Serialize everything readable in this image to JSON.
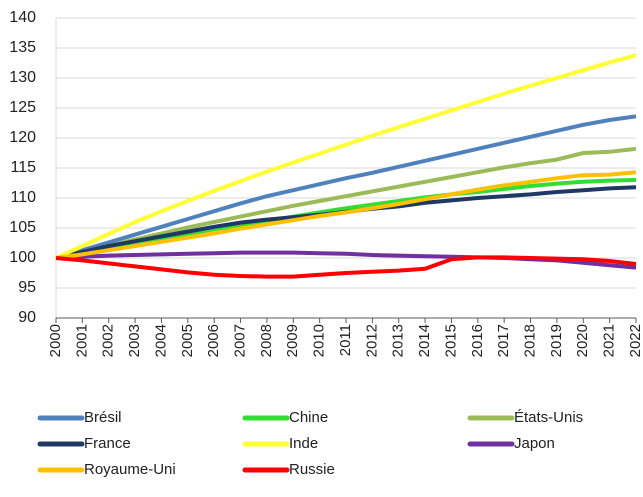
{
  "chart_data": {
    "type": "line",
    "categories": [
      "2000",
      "2001",
      "2002",
      "2003",
      "2004",
      "2005",
      "2006",
      "2007",
      "2008",
      "2009",
      "2010",
      "2011",
      "2012",
      "2013",
      "2014",
      "2015",
      "2016",
      "2017",
      "2018",
      "2019",
      "2020",
      "2021",
      "2022"
    ],
    "ylim": [
      90,
      140
    ],
    "yticks": [
      90,
      95,
      100,
      105,
      110,
      115,
      120,
      125,
      130,
      135,
      140
    ],
    "grid": true,
    "legend": "bottom",
    "series": [
      {
        "name": "Brésil",
        "color": "#4f81bd",
        "values": [
          100,
          101.3,
          102.6,
          103.9,
          105.2,
          106.5,
          107.8,
          109.1,
          110.3,
          111.3,
          112.3,
          113.3,
          114.2,
          115.2,
          116.2,
          117.2,
          118.2,
          119.2,
          120.2,
          121.2,
          122.2,
          123.0,
          123.6
        ]
      },
      {
        "name": "Chine",
        "color": "#33dd33",
        "values": [
          100,
          100.8,
          101.6,
          102.4,
          103.2,
          104,
          104.8,
          105.5,
          106.2,
          106.9,
          107.6,
          108.3,
          108.9,
          109.5,
          110.1,
          110.6,
          111.0,
          111.5,
          112.0,
          112.4,
          112.7,
          112.9,
          113.0
        ]
      },
      {
        "name": "États-Unis",
        "color": "#9bbb59",
        "values": [
          100,
          101,
          102,
          103.1,
          104.1,
          105.1,
          106,
          106.9,
          107.8,
          108.7,
          109.5,
          110.3,
          111.1,
          111.9,
          112.7,
          113.5,
          114.3,
          115.1,
          115.8,
          116.4,
          117.5,
          117.7,
          118.2
        ]
      },
      {
        "name": "France",
        "color": "#1f3864",
        "values": [
          100,
          101,
          102,
          102.8,
          103.6,
          104.4,
          105.2,
          105.9,
          106.4,
          106.8,
          107.2,
          107.7,
          108.2,
          108.6,
          109.2,
          109.6,
          110,
          110.3,
          110.6,
          111,
          111.3,
          111.6,
          111.8
        ]
      },
      {
        "name": "Inde",
        "color": "#ffff33",
        "values": [
          100,
          102,
          104,
          106,
          107.8,
          109.5,
          111.2,
          112.8,
          114.4,
          115.9,
          117.4,
          118.9,
          120.4,
          121.8,
          123.2,
          124.6,
          126,
          127.4,
          128.7,
          130,
          131.3,
          132.6,
          133.8
        ]
      },
      {
        "name": "Japon",
        "color": "#7030a0",
        "values": [
          100,
          100.2,
          100.4,
          100.5,
          100.6,
          100.7,
          100.8,
          100.9,
          100.9,
          100.9,
          100.8,
          100.7,
          100.5,
          100.4,
          100.3,
          100.2,
          100.1,
          100,
          99.8,
          99.6,
          99.2,
          98.8,
          98.4
        ]
      },
      {
        "name": "Royaume-Uni",
        "color": "#ffc000",
        "values": [
          100,
          100.6,
          101.3,
          102,
          102.7,
          103.4,
          104.1,
          104.9,
          105.6,
          106.3,
          107,
          107.6,
          108.3,
          109,
          109.8,
          110.6,
          111.4,
          112.1,
          112.7,
          113.3,
          113.8,
          113.9,
          114.3
        ]
      },
      {
        "name": "Russie",
        "color": "#ff0000",
        "values": [
          100,
          99.6,
          99.1,
          98.6,
          98.1,
          97.6,
          97.2,
          97,
          96.9,
          96.9,
          97.2,
          97.5,
          97.7,
          97.9,
          98.2,
          99.8,
          100.1,
          100.1,
          100,
          99.9,
          99.8,
          99.5,
          99.0
        ]
      }
    ]
  }
}
